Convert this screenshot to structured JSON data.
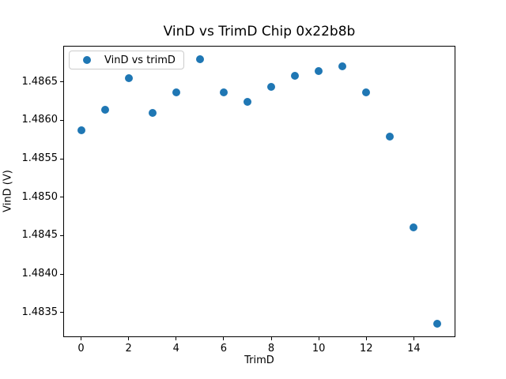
{
  "chart_data": {
    "type": "scatter",
    "title": "VinD vs TrimD Chip 0x22b8b",
    "xlabel": "TrimD",
    "ylabel": "VinD (V)",
    "legend": {
      "label": "VinD vs trimD",
      "position": "upper left"
    },
    "marker_color": "#1f77b4",
    "grid": false,
    "x": [
      0,
      1,
      2,
      3,
      4,
      5,
      6,
      7,
      8,
      9,
      10,
      11,
      12,
      13,
      14,
      15
    ],
    "y": [
      1.48587,
      1.48614,
      1.48655,
      1.4861,
      1.48636,
      1.4868,
      1.48636,
      1.48624,
      1.48644,
      1.48658,
      1.48664,
      1.4867,
      1.48636,
      1.48579,
      1.48461,
      1.48335
    ],
    "xlim": [
      -0.75,
      15.75
    ],
    "ylim": [
      1.48318,
      1.48697
    ],
    "xticks": [
      0,
      2,
      4,
      6,
      8,
      10,
      12,
      14
    ],
    "yticks": [
      1.4835,
      1.484,
      1.4845,
      1.485,
      1.4855,
      1.486,
      1.4865
    ],
    "ytick_decimals": 4
  }
}
